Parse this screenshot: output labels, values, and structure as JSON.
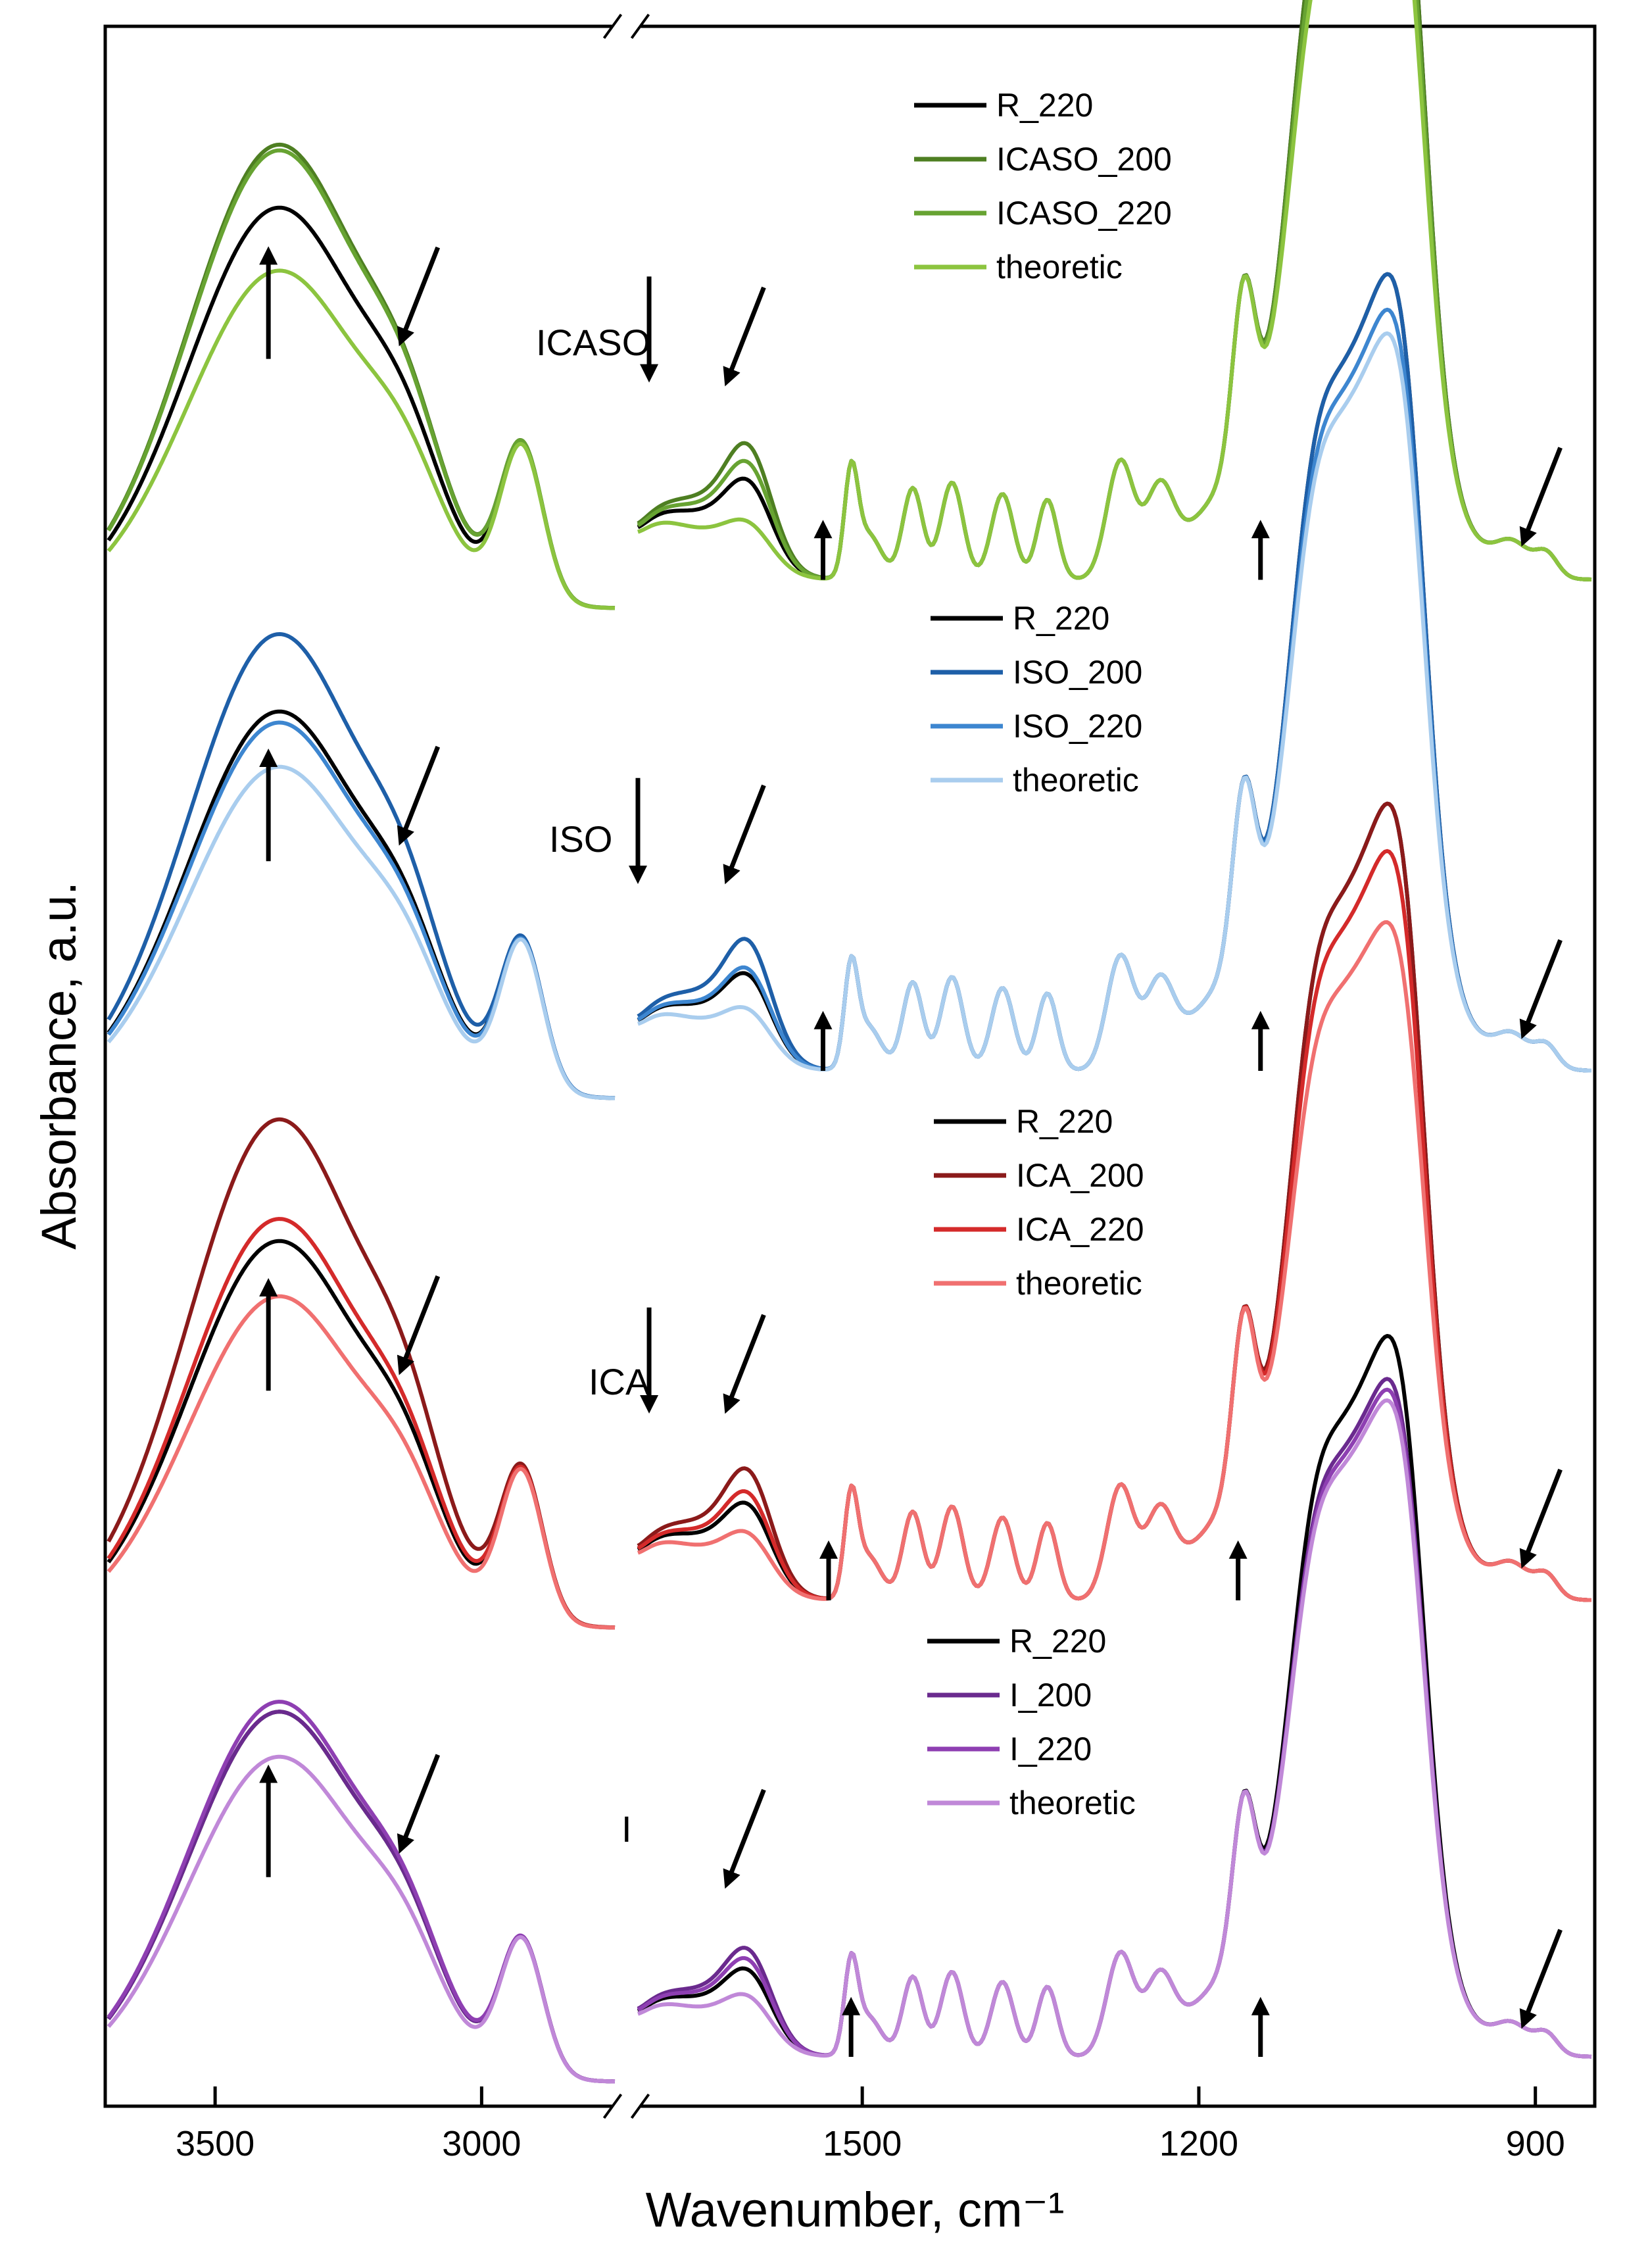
{
  "chart_data": {
    "type": "line",
    "title": "",
    "xlabel": "Wavenumber, cm⁻¹",
    "ylabel": "Absorbance, a.u.",
    "x_axis": {
      "reversed": true,
      "break_between": [
        2750,
        1700
      ],
      "segments": [
        {
          "range": [
            3700,
            2750
          ],
          "ticks": [
            3500,
            3000
          ]
        },
        {
          "range": [
            1700,
            850
          ],
          "ticks": [
            1500,
            1200,
            900
          ]
        }
      ],
      "tick_labels": [
        "3500",
        "3000",
        "1500",
        "1200",
        "900"
      ]
    },
    "panels": [
      {
        "label": "ICASO",
        "series": [
          {
            "name": "R_220",
            "color": "#000000",
            "h1": 0.7,
            "wscale": 1.0,
            "fp": 0.7
          },
          {
            "name": "ICASO_200",
            "color": "#4e7f22",
            "h1": 0.81,
            "wscale": 1.0,
            "fp": 1.0
          },
          {
            "name": "ICASO_220",
            "color": "#67a332",
            "h1": 0.8,
            "wscale": 0.95,
            "fp": 0.85
          },
          {
            "name": "theoretic",
            "color": "#8cc43f",
            "h1": 0.59,
            "wscale": 0.88,
            "fp": 0.35
          }
        ],
        "arrows": [
          {
            "dir": "up",
            "x": 3400
          },
          {
            "dir": "down-left",
            "x": 3150
          },
          {
            "dir": "down",
            "x": 1690
          },
          {
            "dir": "down-left",
            "x": 1620
          },
          {
            "dir": "up",
            "x": 1535
          },
          {
            "dir": "up",
            "x": 1145
          },
          {
            "dir": "down-left",
            "x": 910
          }
        ]
      },
      {
        "label": "ISO",
        "series": [
          {
            "name": "R_220",
            "color": "#000000",
            "h1": 0.7,
            "wscale": 1.0,
            "fp": 0.7
          },
          {
            "name": "ISO_200",
            "color": "#1e5fa8",
            "h1": 0.84,
            "wscale": 1.0,
            "fp": 1.0
          },
          {
            "name": "ISO_220",
            "color": "#3d86d0",
            "h1": 0.68,
            "wscale": 0.94,
            "fp": 0.75
          },
          {
            "name": "theoretic",
            "color": "#a9cdee",
            "h1": 0.6,
            "wscale": 0.9,
            "fp": 0.4
          }
        ],
        "arrows": [
          {
            "dir": "up",
            "x": 3400
          },
          {
            "dir": "down-left",
            "x": 3150
          },
          {
            "dir": "down",
            "x": 1700
          },
          {
            "dir": "down-left",
            "x": 1620
          },
          {
            "dir": "up",
            "x": 1535
          },
          {
            "dir": "up",
            "x": 1145
          },
          {
            "dir": "down-left",
            "x": 910
          }
        ]
      },
      {
        "label": "ICA",
        "series": [
          {
            "name": "R_220",
            "color": "#000000",
            "h1": 0.7,
            "wscale": 1.0,
            "fp": 0.7
          },
          {
            "name": "ICA_200",
            "color": "#8b1a1a",
            "h1": 0.92,
            "wscale": 1.0,
            "fp": 1.0
          },
          {
            "name": "ICA_220",
            "color": "#d42a2a",
            "h1": 0.74,
            "wscale": 0.92,
            "fp": 0.8
          },
          {
            "name": "theoretic",
            "color": "#f07070",
            "h1": 0.6,
            "wscale": 0.8,
            "fp": 0.45
          }
        ],
        "arrows": [
          {
            "dir": "up",
            "x": 3400
          },
          {
            "dir": "down-left",
            "x": 3150
          },
          {
            "dir": "down",
            "x": 1690
          },
          {
            "dir": "down-left",
            "x": 1620
          },
          {
            "dir": "up",
            "x": 1530
          },
          {
            "dir": "up",
            "x": 1165
          },
          {
            "dir": "down-left",
            "x": 910
          }
        ]
      },
      {
        "label": "I",
        "series": [
          {
            "name": "R_220",
            "color": "#000000",
            "h1": 0.74,
            "wscale": 1.0,
            "fp": 0.7
          },
          {
            "name": "I_200",
            "color": "#6a2a8e",
            "h1": 0.74,
            "wscale": 0.92,
            "fp": 0.9
          },
          {
            "name": "I_220",
            "color": "#8e3fb2",
            "h1": 0.76,
            "wscale": 0.9,
            "fp": 0.8
          },
          {
            "name": "theoretic",
            "color": "#c088d8",
            "h1": 0.65,
            "wscale": 0.88,
            "fp": 0.45
          }
        ],
        "arrows": [
          {
            "dir": "up",
            "x": 3400
          },
          {
            "dir": "down-left",
            "x": 3150
          },
          {
            "dir": "down-left",
            "x": 1620
          },
          {
            "dir": "up",
            "x": 1510
          },
          {
            "dir": "up",
            "x": 1145
          },
          {
            "dir": "down-left",
            "x": 910
          }
        ]
      }
    ]
  }
}
